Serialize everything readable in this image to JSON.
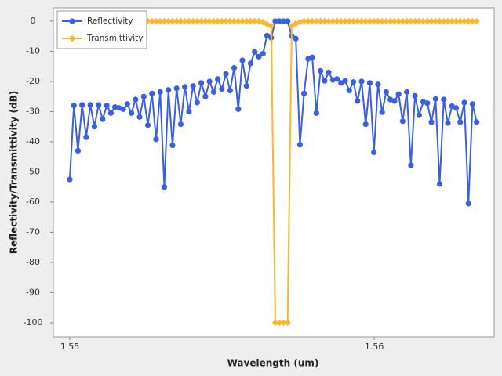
{
  "chart_data": {
    "type": "line",
    "x_label": "Wavelength (um)",
    "y_label": "Reflectivity/Transmittivity (dB)",
    "x": [
      1.55,
      1.550135,
      1.55027,
      1.550405,
      1.55054,
      1.550675,
      1.55081,
      1.550945,
      1.55108,
      1.551215,
      1.55135,
      1.551485,
      1.55162,
      1.551755,
      1.55189,
      1.552025,
      1.55216,
      1.552295,
      1.55243,
      1.552565,
      1.5527,
      1.552835,
      1.55297,
      1.553105,
      1.55324,
      1.553375,
      1.55351,
      1.553645,
      1.55378,
      1.553915,
      1.55405,
      1.554185,
      1.55432,
      1.554455,
      1.55459,
      1.554725,
      1.55486,
      1.554995,
      1.55513,
      1.555265,
      1.5554,
      1.555535,
      1.55567,
      1.555805,
      1.55594,
      1.556075,
      1.55621,
      1.556345,
      1.55648,
      1.556615,
      1.55675,
      1.556885,
      1.55702,
      1.557155,
      1.55729,
      1.557425,
      1.55756,
      1.557695,
      1.55783,
      1.557965,
      1.5581,
      1.558235,
      1.55837,
      1.558505,
      1.55864,
      1.558775,
      1.55891,
      1.559045,
      1.55918,
      1.559315,
      1.55945,
      1.559585,
      1.55972,
      1.559855,
      1.55999,
      1.560125,
      1.56026,
      1.560395,
      1.56053,
      1.560665,
      1.5608,
      1.560935,
      1.56107,
      1.561205,
      1.56134,
      1.561475,
      1.56161,
      1.561745,
      1.56188,
      1.562015,
      1.56215,
      1.562285,
      1.56242,
      1.562555,
      1.56269,
      1.562825,
      1.56296,
      1.563095,
      1.56323,
      1.563365
    ],
    "series": [
      {
        "name": "Reflectivity",
        "color": "#3a5fe0",
        "marker": "circle",
        "values": [
          -52.5,
          -28,
          -43,
          -27.8,
          -38.5,
          -27.8,
          -35,
          -27.8,
          -32.5,
          -28,
          -30.5,
          -28.5,
          -28.8,
          -29.2,
          -27.5,
          -30.5,
          -26,
          -31.8,
          -25,
          -34.5,
          -24,
          -39.2,
          -23.5,
          -55,
          -22.8,
          -41.2,
          -22.3,
          -34.2,
          -21.8,
          -30,
          -21.5,
          -27,
          -20.5,
          -25,
          -20,
          -23.5,
          -19.2,
          -22.5,
          -17.5,
          -23,
          -15.5,
          -29.2,
          -13,
          -21.5,
          -14,
          -10.2,
          -11.8,
          -10.8,
          -4.8,
          -5.5,
          0,
          0,
          0,
          0,
          -5,
          -5.8,
          -41,
          -24,
          -12.5,
          -12,
          -30.5,
          -16.5,
          -19.8,
          -17,
          -19.5,
          -19.2,
          -20.5,
          -19.8,
          -23,
          -20.2,
          -26.5,
          -20,
          -34.2,
          -20.5,
          -43.5,
          -21,
          -30.2,
          -23.5,
          -26,
          -26.5,
          -24.2,
          -33.2,
          -23.5,
          -47.8,
          -24.8,
          -31.2,
          -26.8,
          -27.2,
          -33.5,
          -25.8,
          -54,
          -26,
          -33.8,
          -28.2,
          -28.8,
          -33.5,
          -27,
          -60.5,
          -27.5,
          -33.5
        ]
      },
      {
        "name": "Transmittivity",
        "color": "#ffb52e",
        "marker": "diamond",
        "values": [
          null,
          null,
          null,
          null,
          null,
          null,
          null,
          null,
          null,
          null,
          null,
          null,
          null,
          null,
          null,
          null,
          null,
          null,
          null,
          0,
          0,
          0,
          0,
          0,
          0,
          0,
          0,
          0,
          0,
          0,
          0,
          0,
          0,
          0,
          0,
          0,
          0,
          0,
          0,
          0,
          0,
          0,
          0,
          0,
          0,
          0,
          0,
          -0.3,
          -1,
          -1.6,
          -100,
          -100,
          -100,
          -100,
          -1.6,
          -0.8,
          -0.3,
          0,
          0,
          0,
          0,
          0,
          0,
          0,
          0,
          0,
          0,
          0,
          0,
          0,
          0,
          0,
          0,
          0,
          0,
          0,
          0,
          0,
          0,
          0,
          0,
          0,
          0,
          0,
          0,
          0,
          0,
          0,
          0,
          0,
          0,
          0,
          0,
          0,
          0,
          0,
          0,
          0,
          0,
          0
        ]
      }
    ],
    "xlim": [
      1.54946,
      1.56394
    ],
    "ylim": [
      -104.7,
      4.4
    ],
    "xticks": [
      1.55,
      1.56
    ],
    "yticks": [
      0,
      -10,
      -20,
      -30,
      -40,
      -50,
      -60,
      -70,
      -80,
      -90,
      -100
    ],
    "grid": false,
    "legend_position": "upper left"
  }
}
